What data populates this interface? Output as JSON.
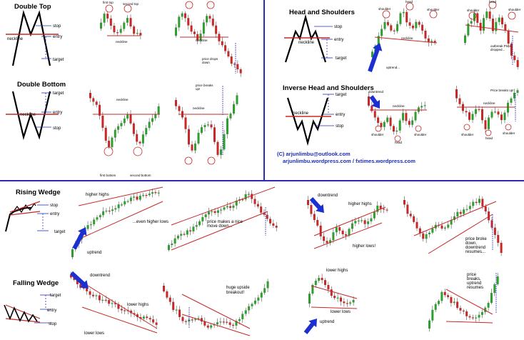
{
  "colors": {
    "bull": "#2e9e2e",
    "bear": "#c62828",
    "divider": "#2b2bb8",
    "arrow": "#1c2fd0",
    "neckline": "#b22222",
    "target": "#3333cc"
  },
  "sections": {
    "double_top": {
      "title": "Double Top",
      "stop": "stop",
      "entry": "entry",
      "neckline": "neckline",
      "target": "target",
      "ex1": [
        "first top",
        "second top",
        "neckline"
      ],
      "ex2": [
        "neckline",
        "price drops down"
      ]
    },
    "double_bottom": {
      "title": "Double Bottom",
      "target": "target",
      "entry": "entry",
      "neckline": "neckline",
      "stop": "stop",
      "ex1": [
        "neckline",
        "first bottom",
        "second bottom"
      ],
      "ex2": [
        "price breaks up!",
        "neckline"
      ]
    },
    "head_shoulders": {
      "title": "Head and Shoulders",
      "stop": "stop",
      "entry": "entry",
      "neckline": "neckline",
      "target": "target",
      "ex1": [
        "shoulder",
        "head",
        "shoulder",
        "neckline",
        "uptrend..."
      ],
      "ex2": [
        "shoulder",
        "head",
        "shoulder",
        "outbreak Price dropped..."
      ]
    },
    "inverse_hs": {
      "title": "Inverse Head and Shoulders",
      "target": "target",
      "entry": "entry",
      "neckline": "neckline",
      "stop": "stop",
      "ex1": [
        "downtrend",
        "neckline",
        "shoulder",
        "head",
        "shoulder"
      ],
      "ex2": [
        "Price breaks up!",
        "neckline",
        "shoulder",
        "head",
        "shoulder"
      ]
    },
    "credits": {
      "line1": "(C) arjunlimbu@outlook.com",
      "line2": "arjunlimbu.wordpress.com / fxtimes.wordpress.com"
    },
    "rising_wedge": {
      "title": "Rising Wedge",
      "stop": "stop",
      "entry": "entry",
      "target": "target",
      "ex1": [
        "higher highs",
        "...even higher lows",
        "uptrend"
      ],
      "ex2": [
        "price makes a nice move down..."
      ],
      "ex3": [
        "downtrend",
        "higher highs",
        "higher lows!"
      ],
      "ex4": [
        "price broke down, downtrend resumes..."
      ]
    },
    "falling_wedge": {
      "title": "Falling Wedge",
      "target": "target",
      "entry": "entry",
      "stop": "stop",
      "ex1": [
        "downtrend",
        "lower highs",
        "lower lows"
      ],
      "ex2": [
        "huge upside breakout!"
      ],
      "ex3": [
        "lower highs",
        "lower lows",
        "uptrend"
      ],
      "ex4": [
        "price breaks, uptrend resumes"
      ]
    }
  },
  "chart_data": [
    {
      "type": "line",
      "title": "Double Top",
      "series": [
        {
          "values": [
            52,
            60,
            88,
            70,
            62,
            84,
            58,
            30
          ]
        }
      ]
    },
    {
      "type": "line",
      "title": "Double Bottom",
      "series": [
        {
          "values": [
            48,
            40,
            12,
            30,
            38,
            16,
            42,
            70
          ]
        }
      ]
    },
    {
      "type": "line",
      "title": "Head and Shoulders",
      "series": [
        {
          "values": [
            30,
            68,
            50,
            90,
            50,
            68,
            40,
            20
          ]
        }
      ]
    },
    {
      "type": "line",
      "title": "Inverse Head and Shoulders",
      "series": [
        {
          "values": [
            70,
            32,
            50,
            10,
            50,
            32,
            60,
            80
          ]
        }
      ]
    },
    {
      "type": "line",
      "title": "Rising Wedge",
      "series": [
        {
          "values": [
            20,
            55,
            35,
            65,
            50,
            72,
            62,
            30
          ]
        }
      ]
    },
    {
      "type": "line",
      "title": "Falling Wedge",
      "series": [
        {
          "values": [
            80,
            45,
            65,
            35,
            50,
            28,
            38,
            75
          ]
        }
      ]
    }
  ]
}
